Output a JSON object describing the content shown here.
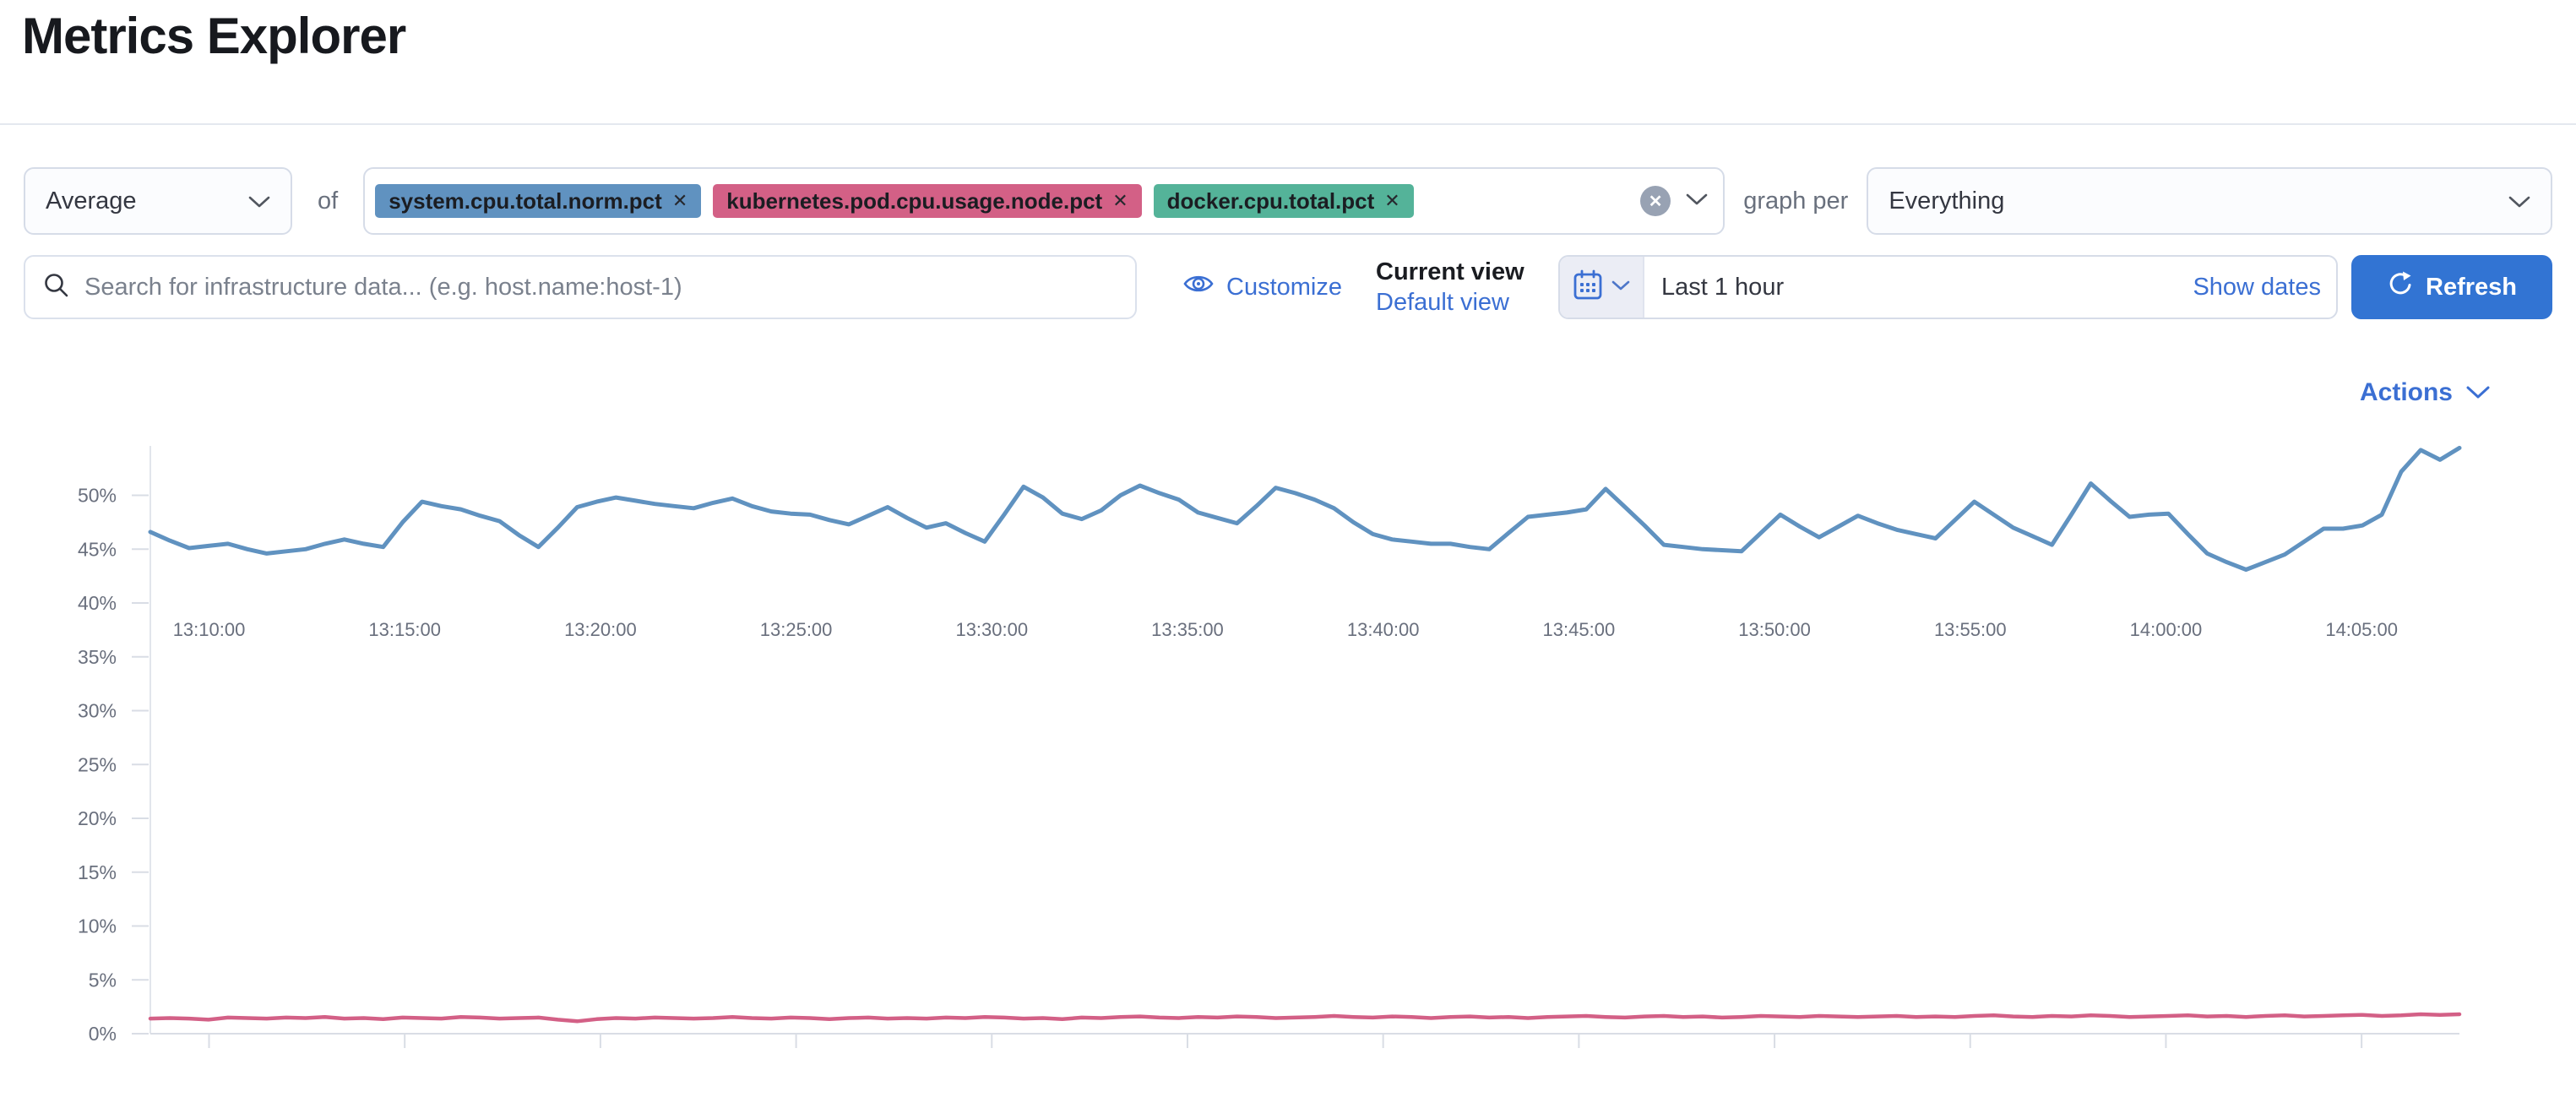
{
  "header": {
    "title": "Metrics Explorer"
  },
  "icons": {
    "close_glyph": "✕"
  },
  "toolbar": {
    "aggregation_select": {
      "value": "Average"
    },
    "of_label": "of",
    "metric_badges": [
      {
        "label": "system.cpu.total.norm.pct",
        "color": "#6092C0"
      },
      {
        "label": "kubernetes.pod.cpu.usage.node.pct",
        "color": "#D36086"
      },
      {
        "label": "docker.cpu.total.pct",
        "color": "#54B399"
      }
    ],
    "graph_per_label": "graph per",
    "group_by_select": {
      "value": "Everything"
    }
  },
  "filter_bar": {
    "search": {
      "placeholder": "Search for infrastructure data... (e.g. host.name:host-1)"
    },
    "customize_label": "Customize",
    "saved_views": {
      "current_view_label": "Current view",
      "view_name": "Default view"
    },
    "time_picker": {
      "value": "Last 1 hour",
      "show_dates_label": "Show dates"
    },
    "refresh_label": "Refresh"
  },
  "chart_header": {
    "actions_label": "Actions"
  },
  "chart_data": {
    "type": "line",
    "title": "",
    "xlabel": "",
    "ylabel": "",
    "legend": "hidden",
    "grid": "tick-stubs-only",
    "x_range": {
      "start": "13:08:30",
      "end": "14:07:30",
      "tick_interval": "5m"
    },
    "x_ticks": [
      "13:10:00",
      "13:15:00",
      "13:20:00",
      "13:25:00",
      "13:30:00",
      "13:35:00",
      "13:40:00",
      "13:45:00",
      "13:50:00",
      "13:55:00",
      "14:00:00",
      "14:05:00"
    ],
    "y_tick_values": [
      0,
      5,
      10,
      15,
      20,
      25,
      30,
      35,
      40,
      45,
      50
    ],
    "y_tick_labels": [
      "0%",
      "5%",
      "10%",
      "15%",
      "20%",
      "25%",
      "30%",
      "35%",
      "40%",
      "45%",
      "50%"
    ],
    "ylim": [
      0,
      55
    ],
    "unit": "percent",
    "series": [
      {
        "name": "system.cpu.total.norm.pct",
        "color": "#6092C0",
        "values": [
          46.6,
          45.8,
          45.1,
          45.3,
          45.5,
          45.0,
          44.6,
          44.8,
          45.0,
          45.5,
          45.9,
          45.5,
          45.2,
          47.5,
          49.4,
          49.0,
          48.7,
          48.1,
          47.6,
          46.3,
          45.2,
          47.0,
          48.9,
          49.4,
          49.8,
          49.5,
          49.2,
          49.0,
          48.8,
          49.3,
          49.7,
          49.0,
          48.5,
          48.3,
          48.2,
          47.7,
          47.3,
          48.1,
          48.9,
          47.9,
          47.0,
          47.4,
          46.5,
          45.7,
          48.2,
          50.8,
          49.8,
          48.3,
          47.8,
          48.6,
          50.0,
          50.9,
          50.2,
          49.6,
          48.4,
          47.9,
          47.4,
          49.0,
          50.7,
          50.2,
          49.6,
          48.8,
          47.5,
          46.4,
          45.9,
          45.7,
          45.5,
          45.5,
          45.2,
          45.0,
          46.5,
          48.0,
          48.2,
          48.4,
          48.7,
          50.6,
          48.9,
          47.2,
          45.4,
          45.2,
          45.0,
          44.9,
          44.8,
          46.5,
          48.2,
          47.1,
          46.1,
          47.1,
          48.1,
          47.4,
          46.8,
          46.4,
          46.0,
          47.7,
          49.4,
          48.2,
          47.0,
          46.2,
          45.4,
          48.2,
          51.1,
          49.5,
          48.0,
          48.2,
          48.3,
          46.4,
          44.6,
          43.8,
          43.1,
          43.8,
          44.5,
          45.7,
          46.9,
          46.9,
          47.2,
          48.2,
          52.2,
          54.2,
          53.3,
          54.4
        ]
      },
      {
        "name": "kubernetes.pod.cpu.usage.node.pct",
        "color": "#D36086",
        "values": [
          1.4,
          1.45,
          1.4,
          1.3,
          1.5,
          1.45,
          1.4,
          1.5,
          1.45,
          1.55,
          1.4,
          1.45,
          1.35,
          1.5,
          1.45,
          1.4,
          1.55,
          1.5,
          1.4,
          1.45,
          1.5,
          1.3,
          1.15,
          1.35,
          1.45,
          1.4,
          1.5,
          1.45,
          1.4,
          1.45,
          1.55,
          1.45,
          1.4,
          1.5,
          1.45,
          1.35,
          1.45,
          1.5,
          1.4,
          1.45,
          1.4,
          1.5,
          1.45,
          1.55,
          1.5,
          1.4,
          1.45,
          1.35,
          1.5,
          1.45,
          1.55,
          1.6,
          1.5,
          1.45,
          1.55,
          1.5,
          1.6,
          1.55,
          1.45,
          1.5,
          1.55,
          1.65,
          1.55,
          1.5,
          1.6,
          1.55,
          1.45,
          1.55,
          1.6,
          1.5,
          1.55,
          1.45,
          1.55,
          1.6,
          1.65,
          1.55,
          1.5,
          1.6,
          1.65,
          1.55,
          1.6,
          1.5,
          1.55,
          1.65,
          1.6,
          1.55,
          1.65,
          1.6,
          1.55,
          1.6,
          1.65,
          1.55,
          1.6,
          1.55,
          1.65,
          1.7,
          1.6,
          1.55,
          1.65,
          1.6,
          1.7,
          1.65,
          1.55,
          1.6,
          1.65,
          1.7,
          1.6,
          1.65,
          1.55,
          1.65,
          1.7,
          1.6,
          1.65,
          1.7,
          1.75,
          1.65,
          1.7,
          1.8,
          1.75,
          1.8
        ]
      }
    ]
  }
}
